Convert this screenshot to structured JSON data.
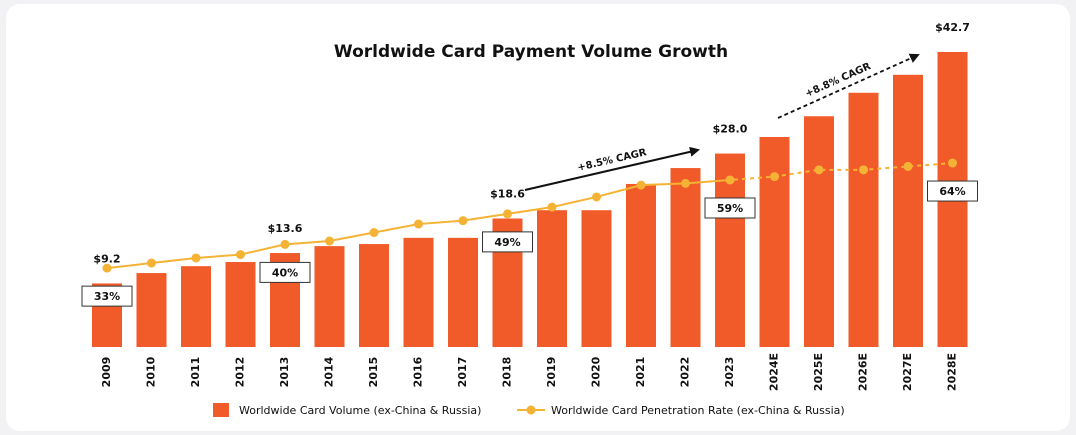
{
  "chart_data": {
    "type": "bar-line",
    "title": "Worldwide Card Payment Volume Growth",
    "categories": [
      "2009",
      "2010",
      "2011",
      "2012",
      "2013",
      "2014",
      "2015",
      "2016",
      "2017",
      "2018",
      "2019",
      "2020",
      "2021",
      "2022",
      "2023",
      "2024E",
      "2025E",
      "2026E",
      "2027E",
      "2028E"
    ],
    "series": [
      {
        "name": "Worldwide Card Volume (ex-China & Russia)",
        "type": "bar",
        "color": "#f15a29",
        "values": [
          9.2,
          10.7,
          11.7,
          12.3,
          13.6,
          14.6,
          14.9,
          15.8,
          15.8,
          18.6,
          19.8,
          19.8,
          23.6,
          25.9,
          28.0,
          30.4,
          33.4,
          36.8,
          39.4,
          42.7
        ],
        "value_labels": [
          "$9.2",
          null,
          null,
          null,
          "$13.6",
          null,
          null,
          null,
          null,
          "$18.6",
          null,
          null,
          null,
          null,
          "$28.0",
          null,
          null,
          null,
          null,
          "$42.7"
        ]
      },
      {
        "name": "Worldwide Card Penetration Rate (ex-China & Russia)",
        "type": "line",
        "axis": "y2",
        "color": "#f5b335",
        "values": [
          33,
          34.5,
          36,
          37,
          40,
          41,
          43.5,
          46,
          47,
          49,
          51,
          54,
          57.5,
          58,
          59,
          60,
          62,
          62,
          63,
          64
        ],
        "value_labels": [
          "33%",
          null,
          null,
          null,
          "40%",
          null,
          null,
          null,
          null,
          "49%",
          null,
          null,
          null,
          null,
          "59%",
          null,
          null,
          null,
          null,
          "64%"
        ]
      }
    ],
    "annotations": [
      "+8.5% CAGR",
      "+8.8% CAGR"
    ]
  }
}
